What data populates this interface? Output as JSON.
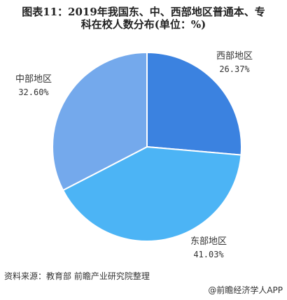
{
  "chart_data": {
    "type": "pie",
    "title_lines": [
      "图表11：2019年我国东、中、西部地区普通本、专",
      "科在校人数分布(单位：%)"
    ],
    "slices": [
      {
        "label": "西部地区",
        "value": 26.37,
        "display": "26.37%",
        "color": "#3b82e0"
      },
      {
        "label": "东部地区",
        "value": 41.03,
        "display": "41.03%",
        "color": "#4cb4f5"
      },
      {
        "label": "中部地区",
        "value": 32.6,
        "display": "32.60%",
        "color": "#74a9ec"
      }
    ],
    "start_angle": "12 o'clock",
    "direction": "clockwise"
  },
  "source": "资料来源：教育部 前瞻产业研究院整理",
  "footer_brand": "@前瞻经济学人APP"
}
